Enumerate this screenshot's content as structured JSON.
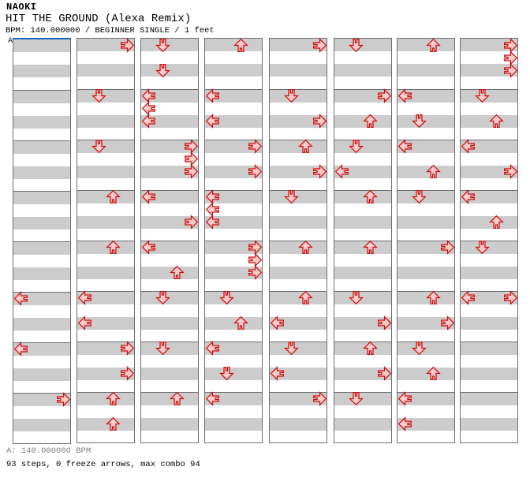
{
  "header": {
    "artist": "NAOKI",
    "title": "HIT THE GROUND (Alexa Remix)",
    "subtitle": "BPM: 140.000000 / BEGINNER SINGLE / 1 feet"
  },
  "bpm_marker": "A",
  "footer": {
    "bpm_line": "A: 140.000000 BPM",
    "summary": "93 steps, 0 freeze arrows, max combo 94"
  },
  "chart": {
    "type": "ddr-step-chart",
    "columns": 8,
    "measures_per_column": 8,
    "beats_per_measure": 4,
    "lane_order": [
      "left",
      "down",
      "up",
      "right"
    ],
    "colors": {
      "band_gray": "#cccccc",
      "band_white": "#ffffff",
      "grid_border": "#6e6e6e",
      "marker_blue": "#1565c0",
      "arrow_fill": "#f9cbcb",
      "arrow_stroke": "#cb0d0d",
      "footer_gray": "#7f7f7f"
    },
    "notes": [
      [
        0,
        5,
        0,
        "L"
      ],
      [
        0,
        6,
        0,
        "L"
      ],
      [
        0,
        7,
        0,
        "R"
      ],
      [
        1,
        0,
        0,
        "R"
      ],
      [
        1,
        1,
        0,
        "D"
      ],
      [
        1,
        2,
        0,
        "D"
      ],
      [
        1,
        3,
        0,
        "U"
      ],
      [
        1,
        4,
        0,
        "U"
      ],
      [
        1,
        5,
        0,
        "L"
      ],
      [
        1,
        5,
        2,
        "L"
      ],
      [
        1,
        6,
        0,
        "R"
      ],
      [
        1,
        6,
        2,
        "R"
      ],
      [
        1,
        7,
        0,
        "U"
      ],
      [
        1,
        7,
        2,
        "U"
      ],
      [
        2,
        0,
        0,
        "D"
      ],
      [
        2,
        0,
        2,
        "D"
      ],
      [
        2,
        1,
        0,
        "L"
      ],
      [
        2,
        1,
        1,
        "L"
      ],
      [
        2,
        1,
        2,
        "L"
      ],
      [
        2,
        2,
        0,
        "R"
      ],
      [
        2,
        2,
        1,
        "R"
      ],
      [
        2,
        2,
        2,
        "R"
      ],
      [
        2,
        3,
        0,
        "L"
      ],
      [
        2,
        3,
        2,
        "R"
      ],
      [
        2,
        4,
        0,
        "L"
      ],
      [
        2,
        4,
        2,
        "U"
      ],
      [
        2,
        5,
        0,
        "D"
      ],
      [
        2,
        6,
        0,
        "D"
      ],
      [
        2,
        7,
        0,
        "U"
      ],
      [
        3,
        0,
        0,
        "U"
      ],
      [
        3,
        1,
        0,
        "L"
      ],
      [
        3,
        1,
        2,
        "L"
      ],
      [
        3,
        2,
        0,
        "R"
      ],
      [
        3,
        2,
        2,
        "R"
      ],
      [
        3,
        3,
        0,
        "L"
      ],
      [
        3,
        3,
        1,
        "L"
      ],
      [
        3,
        3,
        2,
        "L"
      ],
      [
        3,
        4,
        0,
        "R"
      ],
      [
        3,
        4,
        1,
        "R"
      ],
      [
        3,
        4,
        2,
        "R"
      ],
      [
        3,
        5,
        0,
        "D"
      ],
      [
        3,
        5,
        2,
        "U"
      ],
      [
        3,
        6,
        0,
        "L"
      ],
      [
        3,
        6,
        2,
        "D"
      ],
      [
        3,
        7,
        0,
        "L"
      ],
      [
        4,
        0,
        0,
        "R"
      ],
      [
        4,
        1,
        0,
        "D"
      ],
      [
        4,
        1,
        2,
        "R"
      ],
      [
        4,
        2,
        0,
        "U"
      ],
      [
        4,
        2,
        2,
        "R"
      ],
      [
        4,
        3,
        0,
        "D"
      ],
      [
        4,
        4,
        0,
        "U"
      ],
      [
        4,
        5,
        0,
        "U"
      ],
      [
        4,
        5,
        2,
        "L"
      ],
      [
        4,
        6,
        0,
        "D"
      ],
      [
        4,
        6,
        2,
        "L"
      ],
      [
        4,
        7,
        0,
        "R"
      ],
      [
        5,
        0,
        0,
        "D"
      ],
      [
        5,
        1,
        0,
        "R"
      ],
      [
        5,
        1,
        2,
        "U"
      ],
      [
        5,
        2,
        0,
        "D"
      ],
      [
        5,
        2,
        2,
        "L"
      ],
      [
        5,
        3,
        0,
        "U"
      ],
      [
        5,
        4,
        0,
        "U"
      ],
      [
        5,
        5,
        0,
        "D"
      ],
      [
        5,
        5,
        2,
        "R"
      ],
      [
        5,
        6,
        0,
        "U"
      ],
      [
        5,
        6,
        2,
        "R"
      ],
      [
        5,
        7,
        0,
        "D"
      ],
      [
        6,
        0,
        0,
        "U"
      ],
      [
        6,
        1,
        0,
        "L"
      ],
      [
        6,
        1,
        2,
        "D"
      ],
      [
        6,
        2,
        0,
        "L"
      ],
      [
        6,
        2,
        2,
        "U"
      ],
      [
        6,
        3,
        0,
        "D"
      ],
      [
        6,
        4,
        0,
        "R"
      ],
      [
        6,
        5,
        0,
        "U"
      ],
      [
        6,
        5,
        2,
        "R"
      ],
      [
        6,
        6,
        0,
        "D"
      ],
      [
        6,
        6,
        2,
        "U"
      ],
      [
        6,
        7,
        0,
        "L"
      ],
      [
        6,
        7,
        2,
        "L"
      ],
      [
        7,
        0,
        0,
        "R"
      ],
      [
        7,
        0,
        1,
        "R"
      ],
      [
        7,
        0,
        2,
        "R"
      ],
      [
        7,
        1,
        0,
        "D"
      ],
      [
        7,
        1,
        2,
        "U"
      ],
      [
        7,
        2,
        0,
        "L"
      ],
      [
        7,
        2,
        2,
        "R"
      ],
      [
        7,
        3,
        0,
        "L"
      ],
      [
        7,
        3,
        2,
        "U"
      ],
      [
        7,
        4,
        0,
        "D"
      ],
      [
        7,
        5,
        0,
        "L"
      ],
      [
        7,
        5,
        0,
        "R"
      ]
    ]
  }
}
